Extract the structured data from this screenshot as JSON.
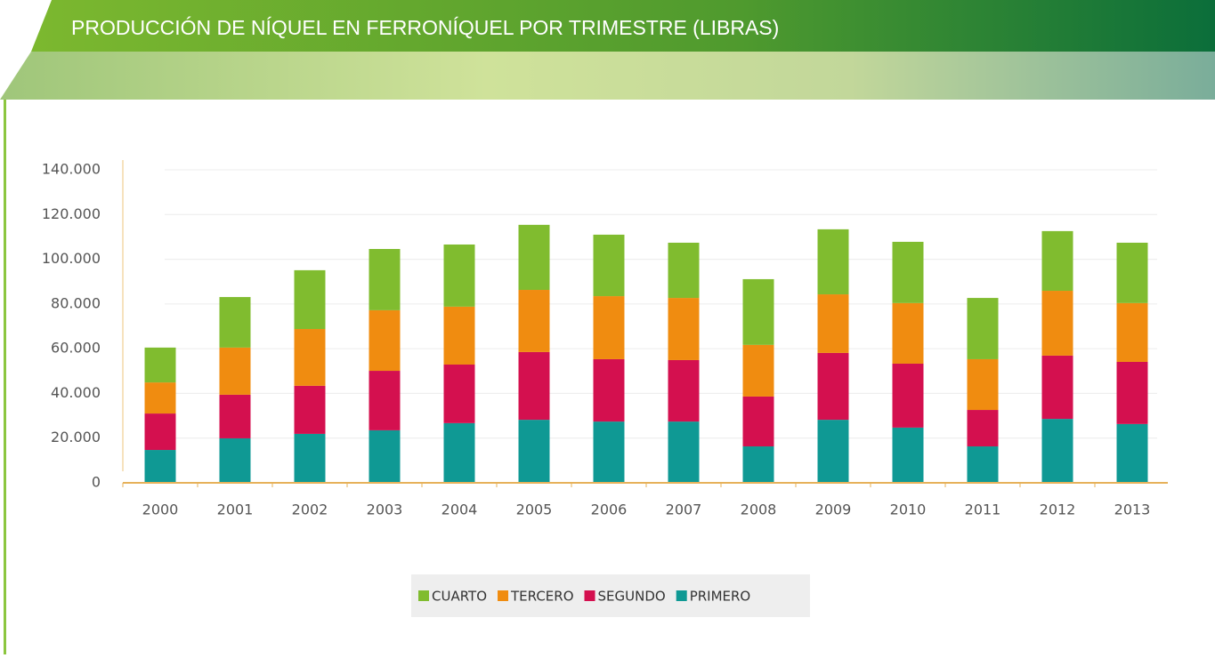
{
  "chart_data": {
    "type": "stacked-bar",
    "title": "PRODUCCIÓN DE NÍQUEL EN FERRONÍQUEL POR TRIMESTRE (LIBRAS)",
    "categories": [
      "2000",
      "2001",
      "2002",
      "2003",
      "2004",
      "2005",
      "2006",
      "2007",
      "2008",
      "2009",
      "2010",
      "2011",
      "2012",
      "2013"
    ],
    "series": [
      {
        "name": "CUARTO",
        "color": "#80bc2f",
        "values": [
          15600,
          22600,
          26300,
          27400,
          27800,
          29100,
          27500,
          24700,
          29400,
          29100,
          27400,
          27400,
          26700,
          27000
        ]
      },
      {
        "name": "TERCERO",
        "color": "#f08c10",
        "values": [
          13900,
          21100,
          25400,
          27100,
          25900,
          27800,
          28200,
          27800,
          23100,
          26200,
          27100,
          22700,
          29000,
          26300
        ]
      },
      {
        "name": "SEGUNDO",
        "color": "#d4104f",
        "values": [
          16300,
          19500,
          21500,
          26600,
          26200,
          30300,
          27900,
          27500,
          22300,
          29900,
          28600,
          16300,
          28300,
          27800
        ]
      },
      {
        "name": "PRIMERO",
        "color": "#0f9994",
        "values": [
          14700,
          19900,
          21900,
          23500,
          26700,
          28200,
          27400,
          27400,
          16300,
          28200,
          24700,
          16300,
          28600,
          26300
        ]
      }
    ],
    "ylim": [
      0,
      140000
    ],
    "yticks": [
      0,
      {
        "value": 20000,
        "label": "20.000"
      },
      {
        "value": 40000,
        "label": "40.000"
      },
      {
        "value": 60000,
        "label": "60.000"
      },
      {
        "value": 80000,
        "label": "80.000"
      },
      {
        "value": 100000,
        "label": "100.000"
      },
      {
        "value": 120000,
        "label": "120.000"
      },
      {
        "value": 140000,
        "label": "140.000"
      }
    ],
    "grid": true
  }
}
